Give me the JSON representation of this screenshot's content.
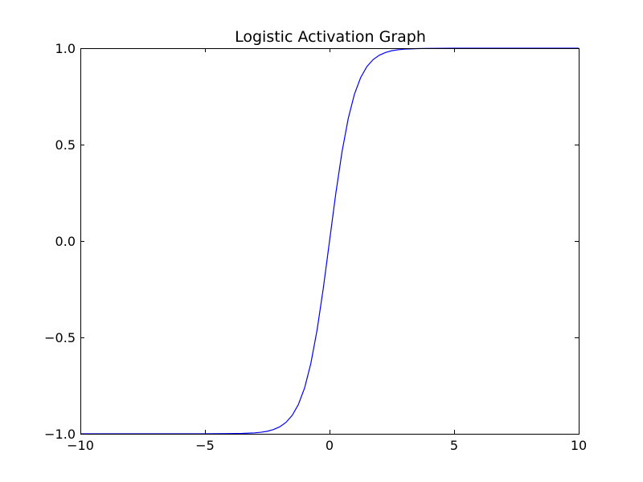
{
  "chart_data": {
    "type": "line",
    "title": "Logistic Activation Graph",
    "xlabel": "",
    "ylabel": "",
    "xlim": [
      -10,
      10
    ],
    "ylim": [
      -1.0,
      1.0
    ],
    "x_ticks": [
      -10,
      -5,
      0,
      5,
      10
    ],
    "x_tick_labels": [
      "−10",
      "−5",
      "0",
      "5",
      "10"
    ],
    "y_ticks": [
      -1.0,
      -0.5,
      0.0,
      0.5,
      1.0
    ],
    "y_tick_labels": [
      "−1.0",
      "−0.5",
      "0.0",
      "0.5",
      "1.0"
    ],
    "grid": false,
    "series": [
      {
        "color": "#0000ff",
        "x": [
          -10,
          -8,
          -6,
          -5,
          -4,
          -3.5,
          -3,
          -2.75,
          -2.5,
          -2.25,
          -2,
          -1.75,
          -1.5,
          -1.25,
          -1,
          -0.75,
          -0.5,
          -0.25,
          0,
          0.25,
          0.5,
          0.75,
          1,
          1.25,
          1.5,
          1.75,
          2,
          2.25,
          2.5,
          2.75,
          3,
          3.5,
          4,
          5,
          6,
          8,
          10
        ],
        "y": [
          -1.0,
          -1.0,
          -1.0,
          -1.0,
          -0.999,
          -0.998,
          -0.995,
          -0.992,
          -0.987,
          -0.978,
          -0.964,
          -0.941,
          -0.905,
          -0.848,
          -0.762,
          -0.635,
          -0.462,
          -0.245,
          0.0,
          0.245,
          0.462,
          0.635,
          0.762,
          0.848,
          0.905,
          0.941,
          0.964,
          0.978,
          0.987,
          0.992,
          0.995,
          0.998,
          0.999,
          1.0,
          1.0,
          1.0,
          1.0
        ]
      }
    ]
  }
}
